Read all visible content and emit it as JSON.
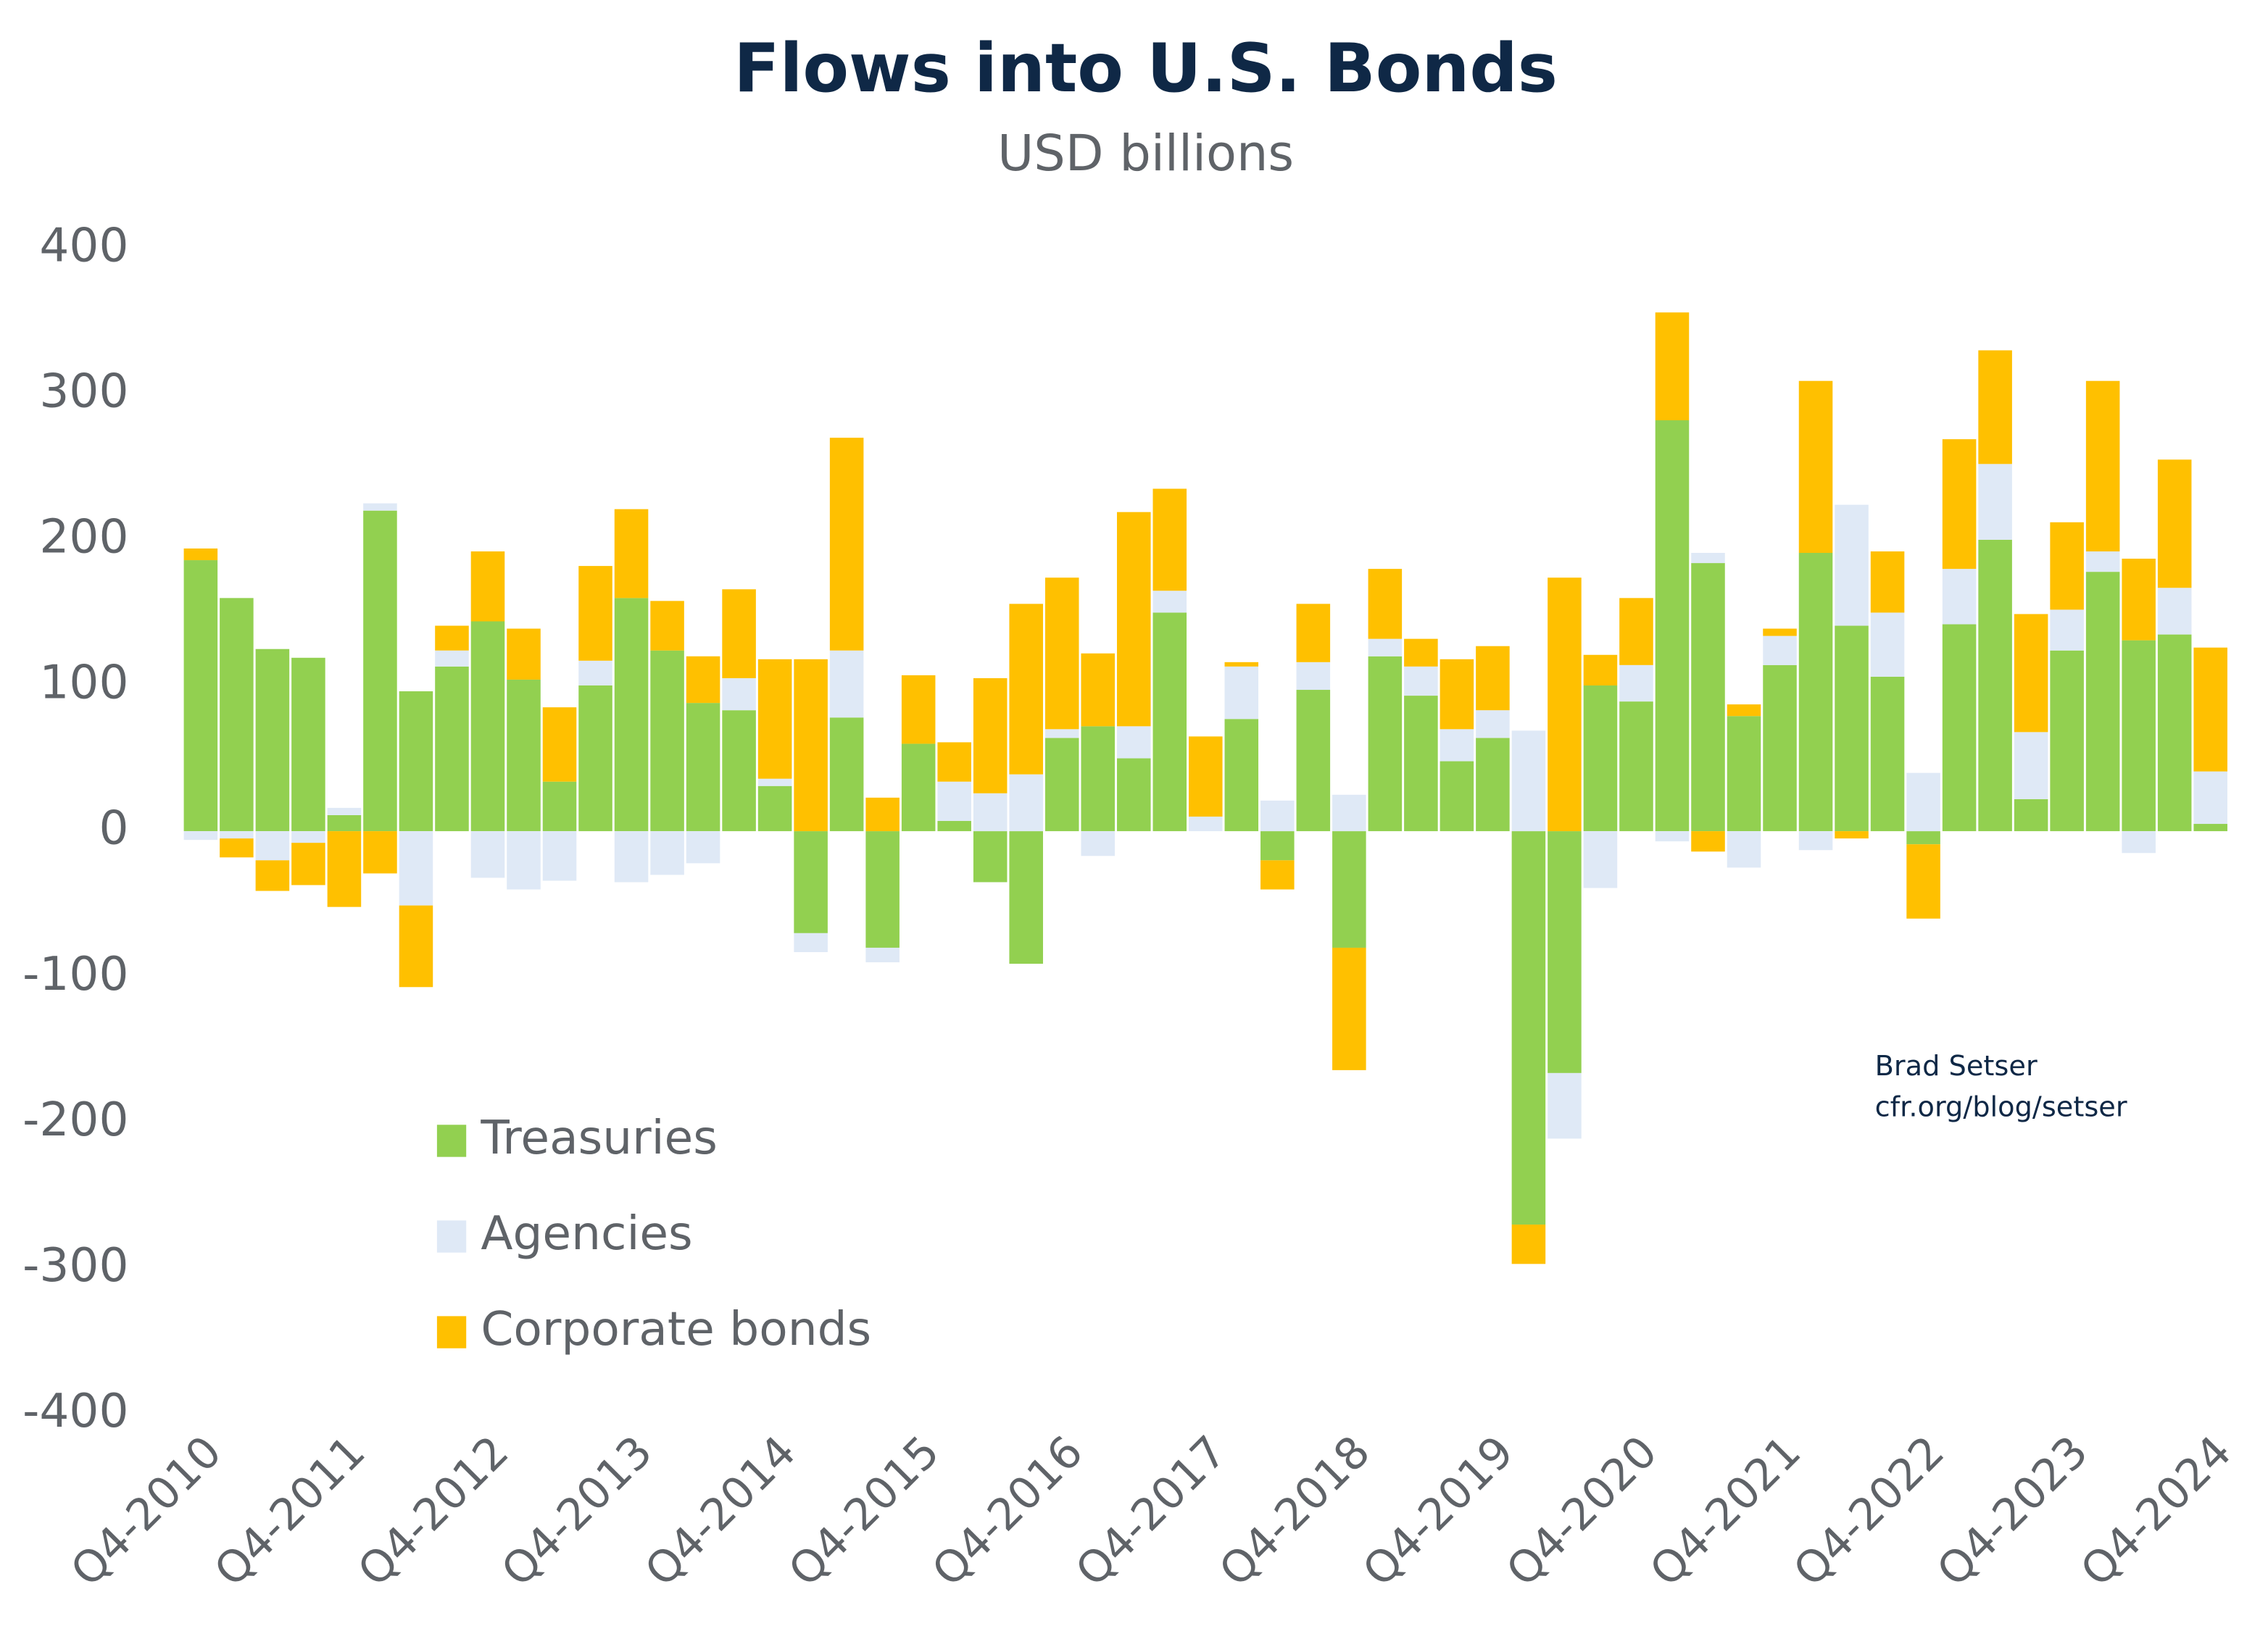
{
  "chart_data": {
    "type": "bar",
    "stacked": true,
    "title": "Flows into U.S. Bonds",
    "subtitle": "USD billions",
    "annotations": [
      "Brad Setser",
      "cfr.org/blog/setser"
    ],
    "categories": [
      "Q4-2010",
      null,
      null,
      null,
      "Q4-2011",
      null,
      null,
      null,
      "Q4-2012",
      null,
      null,
      null,
      "Q4-2013",
      null,
      null,
      null,
      "Q4-2014",
      null,
      null,
      null,
      "Q4-2015",
      null,
      null,
      null,
      "Q4-2016",
      null,
      null,
      null,
      "Q4-2017",
      null,
      null,
      null,
      "Q4-2018",
      null,
      null,
      null,
      "Q4-2019",
      null,
      null,
      null,
      "Q4-2020",
      null,
      null,
      null,
      "Q4-2021",
      null,
      null,
      null,
      "Q4-2022",
      null,
      null,
      null,
      "Q4-2023",
      null,
      null,
      null,
      "Q4-2024"
    ],
    "series": [
      {
        "name": "Treasuries",
        "color": "#92d050",
        "values": [
          186,
          160,
          125,
          119,
          11,
          220,
          96,
          113,
          144,
          104,
          34,
          100,
          160,
          124,
          88,
          83,
          31,
          -70,
          78,
          -80,
          60,
          7,
          -35,
          -91,
          64,
          72,
          50,
          150,
          0,
          77,
          -20,
          97,
          -80,
          120,
          93,
          48,
          64,
          -270,
          -166,
          100,
          89,
          282,
          184,
          79,
          114,
          191,
          141,
          106,
          -9,
          142,
          200,
          22,
          124,
          178,
          131,
          135,
          5
        ]
      },
      {
        "name": "Agencies",
        "color": "#dfe9f6",
        "values": [
          -6,
          -5,
          -20,
          -8,
          5,
          5,
          -51,
          11,
          -32,
          -40,
          -34,
          17,
          -35,
          -30,
          -22,
          22,
          5,
          -13,
          46,
          -10,
          0,
          27,
          26,
          39,
          6,
          -17,
          22,
          15,
          10,
          36,
          21,
          19,
          25,
          12,
          20,
          22,
          19,
          69,
          -45,
          -39,
          25,
          -7,
          7,
          -25,
          20,
          -13,
          83,
          44,
          40,
          38,
          52,
          46,
          28,
          14,
          -15,
          32,
          36
        ]
      },
      {
        "name": "Corporate bonds",
        "color": "#ffc000",
        "values": [
          8,
          -13,
          -21,
          -29,
          -52,
          -29,
          -56,
          17,
          48,
          35,
          51,
          65,
          61,
          34,
          32,
          61,
          82,
          118,
          146,
          23,
          47,
          27,
          79,
          117,
          104,
          50,
          147,
          70,
          55,
          3,
          -20,
          40,
          -84,
          48,
          19,
          48,
          44,
          -27,
          174,
          21,
          46,
          74,
          -14,
          8,
          5,
          118,
          -5,
          42,
          -51,
          89,
          78,
          81,
          60,
          117,
          56,
          88,
          85
        ]
      }
    ],
    "ylim": [
      -400,
      400
    ],
    "yticks": [
      -400,
      -300,
      -200,
      -100,
      0,
      100,
      200,
      300,
      400
    ],
    "grid": false
  }
}
